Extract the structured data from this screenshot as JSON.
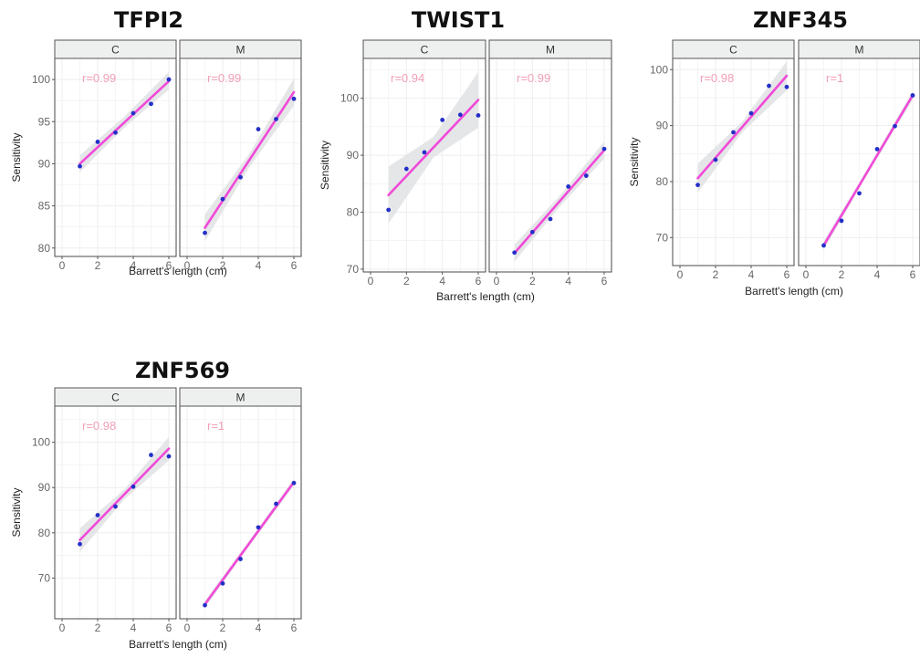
{
  "colors": {
    "point": "#2430c8",
    "fit_line": "#f04ad8",
    "band": "#e0e2e4",
    "r_label": "#f2a0b6",
    "strip_fill": "#eef0ef",
    "strip_border": "#555555",
    "grid": "#eeeeee"
  },
  "chart_data": [
    {
      "type": "scatter",
      "title": "TFPI2",
      "xlabel": "Barrett's length (cm)",
      "ylabel": "Sensitivity",
      "xlim": [
        0,
        6
      ],
      "ylim": [
        79,
        102.5
      ],
      "x_ticks": [
        0,
        2,
        4,
        6
      ],
      "y_ticks": [
        80,
        85,
        90,
        95,
        100
      ],
      "grid": true,
      "panels": [
        {
          "facet": "C",
          "annotation": "r=0.99",
          "points": [
            [
              1,
              89.7
            ],
            [
              2,
              92.6
            ],
            [
              3,
              93.7
            ],
            [
              4,
              96.0
            ],
            [
              5,
              97.1
            ],
            [
              6,
              100.0
            ]
          ],
          "fit": [
            [
              1,
              90.0
            ],
            [
              6,
              99.8
            ]
          ],
          "band": [
            [
              1,
              89.0,
              91.0
            ],
            [
              3.5,
              94.3,
              95.6
            ],
            [
              6,
              98.8,
              100.9
            ]
          ]
        },
        {
          "facet": "M",
          "annotation": "r=0.99",
          "points": [
            [
              1,
              81.8
            ],
            [
              2,
              85.8
            ],
            [
              3,
              88.4
            ],
            [
              4,
              94.1
            ],
            [
              5,
              95.3
            ],
            [
              6,
              97.7
            ]
          ],
          "fit": [
            [
              1,
              82.4
            ],
            [
              6,
              98.5
            ]
          ],
          "band": [
            [
              1,
              80.8,
              84.0
            ],
            [
              3.5,
              89.6,
              91.2
            ],
            [
              6,
              96.9,
              100.1
            ]
          ]
        }
      ]
    },
    {
      "type": "scatter",
      "title": "TWIST1",
      "xlabel": "Barrett's length (cm)",
      "ylabel": "Sensitivity",
      "xlim": [
        0,
        6
      ],
      "ylim": [
        69.5,
        107
      ],
      "x_ticks": [
        0,
        2,
        4,
        6
      ],
      "y_ticks": [
        70,
        80,
        90,
        100
      ],
      "grid": true,
      "panels": [
        {
          "facet": "C",
          "annotation": "r=0.94",
          "points": [
            [
              1,
              80.4
            ],
            [
              2,
              87.6
            ],
            [
              3,
              90.5
            ],
            [
              4,
              96.2
            ],
            [
              5,
              97.1
            ],
            [
              6,
              97.0
            ]
          ],
          "fit": [
            [
              1,
              83.0
            ],
            [
              6,
              99.7
            ]
          ],
          "band": [
            [
              1,
              78.0,
              88.0
            ],
            [
              3.5,
              89.6,
              93.2
            ],
            [
              6,
              94.8,
              104.6
            ]
          ]
        },
        {
          "facet": "M",
          "annotation": "r=0.99",
          "points": [
            [
              1,
              72.9
            ],
            [
              2,
              76.5
            ],
            [
              3,
              78.8
            ],
            [
              4,
              84.5
            ],
            [
              5,
              86.4
            ],
            [
              6,
              91.1
            ]
          ],
          "fit": [
            [
              1,
              72.8
            ],
            [
              6,
              90.9
            ]
          ],
          "band": [
            [
              1,
              71.3,
              74.3
            ],
            [
              3.5,
              80.9,
              82.8
            ],
            [
              6,
              89.4,
              92.4
            ]
          ]
        }
      ]
    },
    {
      "type": "scatter",
      "title": "ZNF345",
      "xlabel": "Barrett's length (cm)",
      "ylabel": "Sensitivity",
      "xlim": [
        0,
        6
      ],
      "ylim": [
        65,
        102
      ],
      "x_ticks": [
        0,
        2,
        4,
        6
      ],
      "y_ticks": [
        70,
        80,
        90,
        100
      ],
      "grid": true,
      "panels": [
        {
          "facet": "C",
          "annotation": "r=0.98",
          "points": [
            [
              1,
              79.4
            ],
            [
              2,
              83.9
            ],
            [
              3,
              88.8
            ],
            [
              4,
              92.2
            ],
            [
              5,
              97.1
            ],
            [
              6,
              96.9
            ]
          ],
          "fit": [
            [
              1,
              80.6
            ],
            [
              6,
              98.9
            ]
          ],
          "band": [
            [
              1,
              78.0,
              83.2
            ],
            [
              3.5,
              88.8,
              90.7
            ],
            [
              6,
              96.3,
              101.5
            ]
          ]
        },
        {
          "facet": "M",
          "annotation": "r=1",
          "points": [
            [
              1,
              68.6
            ],
            [
              2,
              73.0
            ],
            [
              3,
              77.9
            ],
            [
              4,
              85.8
            ],
            [
              5,
              89.9
            ],
            [
              6,
              95.4
            ]
          ],
          "fit": [
            [
              1,
              68.6
            ],
            [
              6,
              95.4
            ]
          ],
          "band": [
            [
              1,
              67.8,
              69.4
            ],
            [
              3.5,
              81.5,
              82.5
            ],
            [
              6,
              94.6,
              96.2
            ]
          ]
        }
      ]
    },
    {
      "type": "scatter",
      "title": "ZNF569",
      "xlabel": "Barrett's length (cm)",
      "ylabel": "Sensitivity",
      "xlim": [
        0,
        6
      ],
      "ylim": [
        61,
        108
      ],
      "x_ticks": [
        0,
        2,
        4,
        6
      ],
      "y_ticks": [
        70,
        80,
        90,
        100
      ],
      "grid": true,
      "panels": [
        {
          "facet": "C",
          "annotation": "r=0.98",
          "points": [
            [
              1,
              77.5
            ],
            [
              2,
              83.9
            ],
            [
              3,
              85.8
            ],
            [
              4,
              90.2
            ],
            [
              5,
              97.2
            ],
            [
              6,
              96.9
            ]
          ],
          "fit": [
            [
              1,
              78.4
            ],
            [
              6,
              98.6
            ]
          ],
          "band": [
            [
              1,
              75.8,
              81.0
            ],
            [
              3.5,
              87.4,
              89.6
            ],
            [
              6,
              96.0,
              101.2
            ]
          ]
        },
        {
          "facet": "M",
          "annotation": "r=1",
          "points": [
            [
              1,
              64.0
            ],
            [
              2,
              68.8
            ],
            [
              3,
              74.2
            ],
            [
              4,
              81.2
            ],
            [
              5,
              86.4
            ],
            [
              6,
              91.0
            ]
          ],
          "fit": [
            [
              1,
              64.2
            ],
            [
              6,
              91.2
            ]
          ],
          "band": [
            [
              1,
              63.4,
              65.0
            ],
            [
              3.5,
              77.1,
              78.3
            ],
            [
              6,
              90.4,
              92.0
            ]
          ]
        }
      ]
    }
  ]
}
